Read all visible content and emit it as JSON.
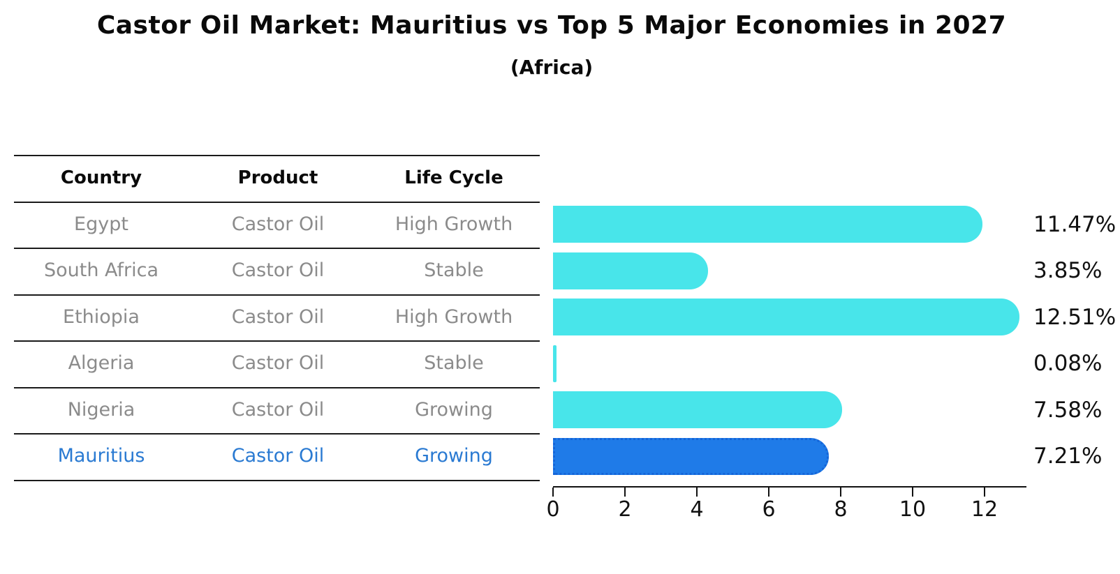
{
  "title": "Castor Oil Market: Mauritius vs Top 5 Major Economies in 2027",
  "subtitle": "(Africa)",
  "table": {
    "headers": [
      "Country",
      "Product",
      "Life Cycle"
    ],
    "rows": [
      {
        "country": "Egypt",
        "product": "Castor Oil",
        "life_cycle": "High Growth",
        "highlight": false
      },
      {
        "country": "South Africa",
        "product": "Castor Oil",
        "life_cycle": "Stable",
        "highlight": false
      },
      {
        "country": "Ethiopia",
        "product": "Castor Oil",
        "life_cycle": "High Growth",
        "highlight": false
      },
      {
        "country": "Algeria",
        "product": "Castor Oil",
        "life_cycle": "Stable",
        "highlight": false
      },
      {
        "country": "Nigeria",
        "product": "Castor Oil",
        "life_cycle": "Growing",
        "highlight": false
      },
      {
        "country": "Mauritius",
        "product": "Castor Oil",
        "life_cycle": "Growing",
        "highlight": true
      }
    ]
  },
  "chart_data": {
    "type": "bar",
    "orientation": "horizontal",
    "title": "Castor Oil Market: Mauritius vs Top 5 Major Economies in 2027",
    "subtitle": "(Africa)",
    "categories": [
      "Egypt",
      "South Africa",
      "Ethiopia",
      "Algeria",
      "Nigeria",
      "Mauritius"
    ],
    "values": [
      11.47,
      3.85,
      12.51,
      0.08,
      7.58,
      7.21
    ],
    "value_labels": [
      "11.47%",
      "3.85%",
      "12.51%",
      "0.08%",
      "7.58%",
      "7.21%"
    ],
    "xticks": [
      0,
      2,
      4,
      6,
      8,
      10,
      12
    ],
    "xlim": [
      0,
      13.2
    ],
    "grid": false,
    "legend": false,
    "highlight_index": 5,
    "bar_color": "#48e5ea",
    "highlight_bar_color": "#1f7be8",
    "highlight_text_color": "#2a7ad2",
    "body_text_color": "#8b8b8b"
  }
}
